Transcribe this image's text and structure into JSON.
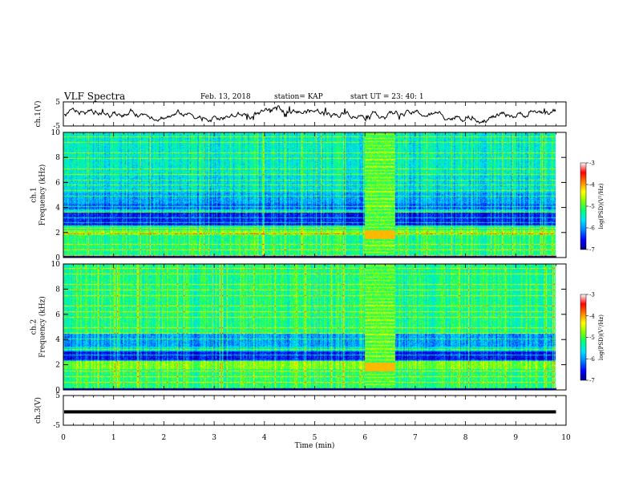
{
  "header": {
    "title": "VLF Spectra",
    "date": "Feb. 13, 2018",
    "station": "station= KAP",
    "start": "start  UT  =  23: 40: 1"
  },
  "chart_data": [
    {
      "type": "line",
      "name": "ch1-waveform",
      "ylabel": "ch.1(V)",
      "ylim": [
        -5,
        5
      ],
      "yticks": [
        "5",
        "-5"
      ],
      "xlim": [
        0,
        10
      ]
    },
    {
      "type": "heatmap",
      "name": "ch1-spectrogram",
      "ylabel": "ch.1\nFrequency (kHz)",
      "ylim": [
        0,
        10
      ],
      "yticks": [
        "0",
        "2",
        "4",
        "6",
        "8",
        "10"
      ],
      "xlim": [
        0,
        10
      ],
      "data_end_min": 9.8,
      "disturbance_window_min": [
        6.0,
        6.6
      ],
      "colorbar": {
        "label": "log(PSD)(V²/Hz)",
        "range": [
          -7,
          -3
        ],
        "ticks": [
          "-3",
          "-4",
          "-5",
          "-6",
          "-7"
        ]
      }
    },
    {
      "type": "heatmap",
      "name": "ch2-spectrogram",
      "ylabel": "ch.2\nFrequency (kHz)",
      "ylim": [
        0,
        10
      ],
      "yticks": [
        "0",
        "2",
        "4",
        "6",
        "8",
        "10"
      ],
      "xlim": [
        0,
        10
      ],
      "data_end_min": 9.8,
      "disturbance_window_min": [
        6.0,
        6.6
      ],
      "colorbar": {
        "label": "log(PSD)(V²/Hz)",
        "range": [
          -7,
          -3
        ],
        "ticks": [
          "-3",
          "-4",
          "-5",
          "-6",
          "-7"
        ]
      }
    },
    {
      "type": "line",
      "name": "ch3-waveform",
      "ylabel": "ch.3(V)",
      "ylim": [
        -5,
        5
      ],
      "yticks": [
        "5",
        "-5"
      ],
      "xlim": [
        0,
        10
      ],
      "constant_value": -0.5
    }
  ],
  "xaxis": {
    "label": "Time  (min)",
    "ticks": [
      "0",
      "1",
      "2",
      "3",
      "4",
      "5",
      "6",
      "7",
      "8",
      "9",
      "10"
    ]
  },
  "colors": {
    "colormap": [
      "#000080",
      "#0000ff",
      "#0080ff",
      "#00e0ff",
      "#00ff80",
      "#80ff00",
      "#ffff00",
      "#ff8000",
      "#ff0000",
      "#ffffff"
    ]
  }
}
